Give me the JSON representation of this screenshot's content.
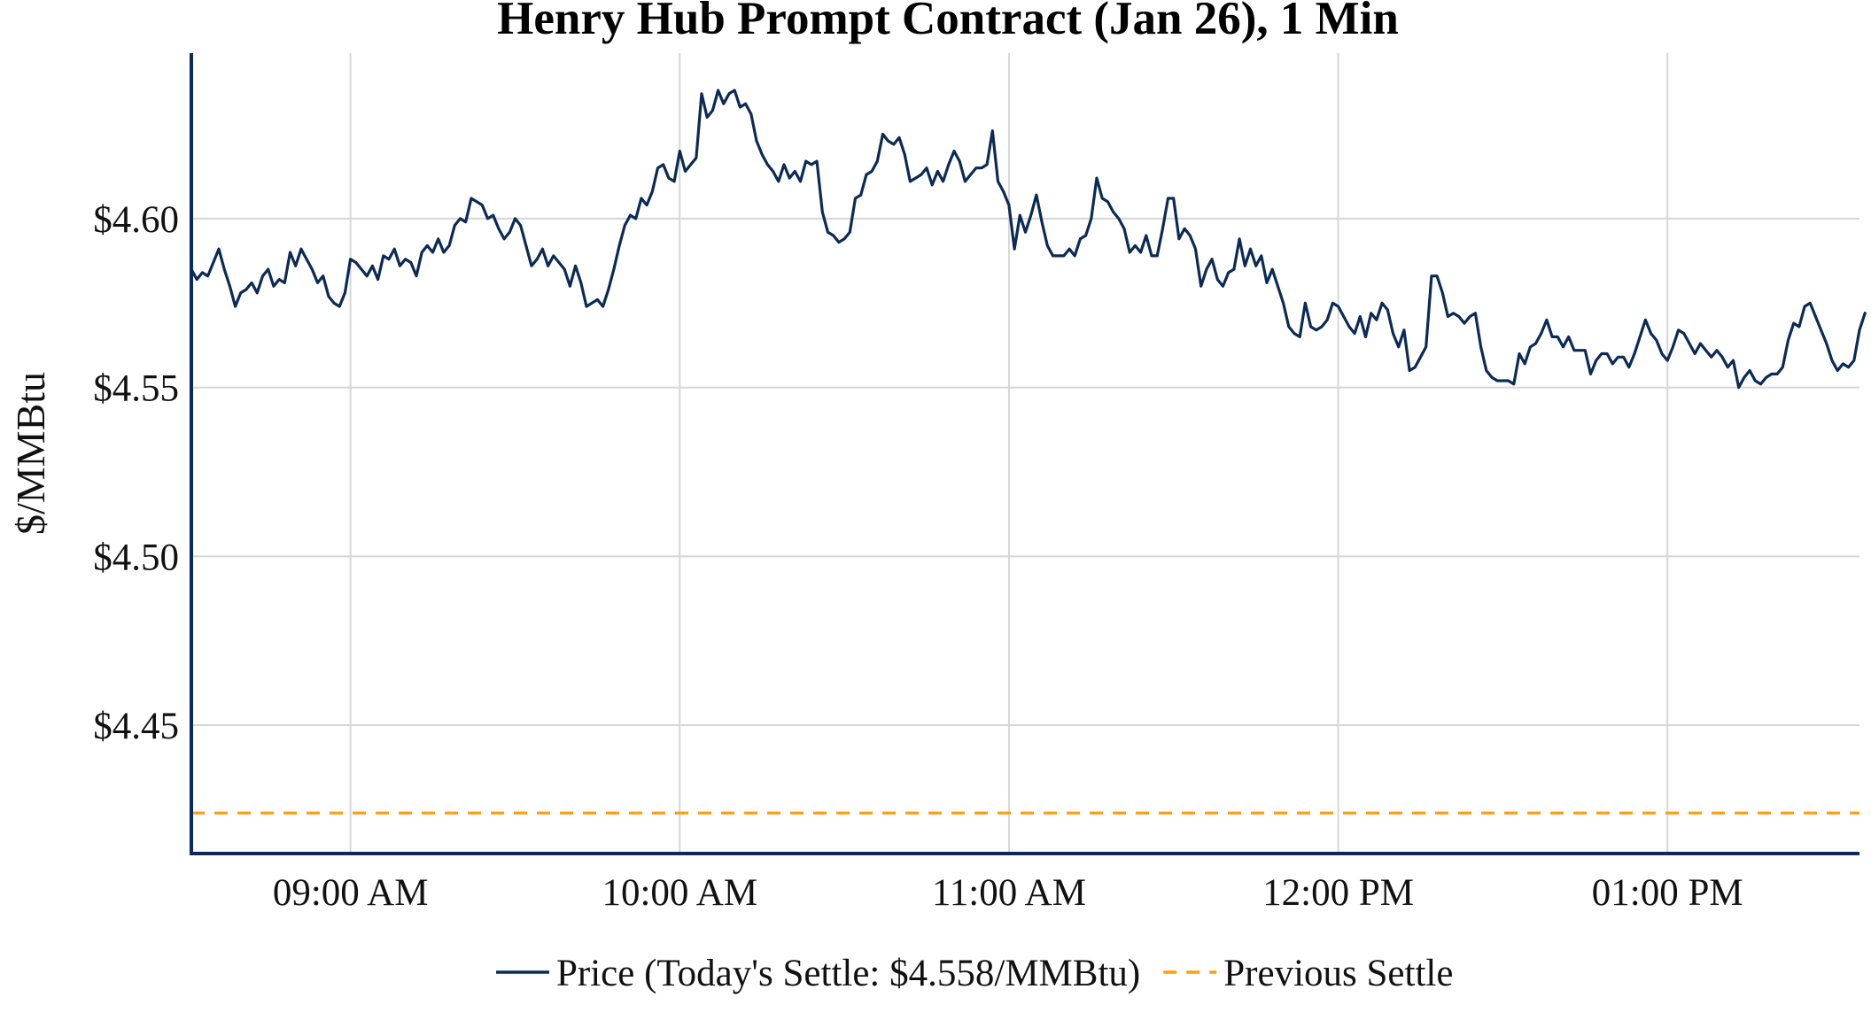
{
  "chart_data": {
    "type": "line",
    "title": "Henry Hub Prompt Contract (Jan 26), 1 Min",
    "xlabel": "",
    "ylabel": "$/MMBtu",
    "x_start": "08:31 AM",
    "x_interval_minutes": 1,
    "xlim": [
      "08:31 AM",
      "01:35 PM"
    ],
    "ylim": [
      4.412,
      4.649
    ],
    "x_ticks": [
      "09:00 AM",
      "10:00 AM",
      "11:00 AM",
      "12:00 PM",
      "01:00 PM"
    ],
    "y_ticks": [
      {
        "value": 4.45,
        "label": "$4.45"
      },
      {
        "value": 4.5,
        "label": "$4.50"
      },
      {
        "value": 4.55,
        "label": "$4.55"
      },
      {
        "value": 4.6,
        "label": "$4.60"
      }
    ],
    "grid": true,
    "legend_position": "bottom",
    "series": [
      {
        "name": "Price (Today's Settle: $4.558/MMBtu)",
        "color": "#0b2a55",
        "style": "solid",
        "values": [
          4.585,
          4.582,
          4.584,
          4.583,
          4.587,
          4.591,
          4.585,
          4.58,
          4.574,
          4.578,
          4.579,
          4.581,
          4.578,
          4.583,
          4.585,
          4.58,
          4.582,
          4.581,
          4.59,
          4.586,
          4.591,
          4.588,
          4.585,
          4.581,
          4.583,
          4.577,
          4.575,
          4.574,
          4.578,
          4.588,
          4.587,
          4.585,
          4.583,
          4.586,
          4.582,
          4.589,
          4.588,
          4.591,
          4.586,
          4.588,
          4.587,
          4.583,
          4.59,
          4.592,
          4.59,
          4.594,
          4.59,
          4.592,
          4.598,
          4.6,
          4.599,
          4.606,
          4.605,
          4.604,
          4.6,
          4.601,
          4.597,
          4.594,
          4.596,
          4.6,
          4.598,
          4.592,
          4.586,
          4.588,
          4.591,
          4.586,
          4.589,
          4.587,
          4.585,
          4.58,
          4.586,
          4.581,
          4.574,
          4.575,
          4.576,
          4.574,
          4.579,
          4.585,
          4.592,
          4.598,
          4.601,
          4.6,
          4.606,
          4.604,
          4.608,
          4.615,
          4.616,
          4.612,
          4.611,
          4.62,
          4.614,
          4.616,
          4.618,
          4.637,
          4.63,
          4.632,
          4.638,
          4.634,
          4.637,
          4.638,
          4.633,
          4.634,
          4.631,
          4.623,
          4.619,
          4.616,
          4.614,
          4.611,
          4.616,
          4.612,
          4.614,
          4.611,
          4.617,
          4.616,
          4.617,
          4.602,
          4.596,
          4.595,
          4.593,
          4.594,
          4.596,
          4.606,
          4.607,
          4.613,
          4.614,
          4.617,
          4.625,
          4.623,
          4.622,
          4.624,
          4.619,
          4.611,
          4.612,
          4.613,
          4.615,
          4.61,
          4.614,
          4.611,
          4.616,
          4.62,
          4.617,
          4.611,
          4.613,
          4.615,
          4.615,
          4.616,
          4.626,
          4.611,
          4.608,
          4.604,
          4.591,
          4.601,
          4.596,
          4.601,
          4.607,
          4.599,
          4.592,
          4.589,
          4.589,
          4.589,
          4.591,
          4.589,
          4.594,
          4.595,
          4.6,
          4.612,
          4.606,
          4.605,
          4.602,
          4.6,
          4.597,
          4.59,
          4.592,
          4.59,
          4.595,
          4.589,
          4.589,
          4.597,
          4.606,
          4.606,
          4.594,
          4.597,
          4.595,
          4.591,
          4.58,
          4.585,
          4.588,
          4.582,
          4.58,
          4.584,
          4.585,
          4.594,
          4.586,
          4.591,
          4.586,
          4.589,
          4.581,
          4.585,
          4.58,
          4.575,
          4.568,
          4.566,
          4.565,
          4.575,
          4.568,
          4.567,
          4.568,
          4.57,
          4.575,
          4.574,
          4.571,
          4.568,
          4.566,
          4.571,
          4.565,
          4.572,
          4.57,
          4.575,
          4.573,
          4.566,
          4.562,
          4.567,
          4.555,
          4.556,
          4.559,
          4.562,
          4.583,
          4.583,
          4.578,
          4.571,
          4.572,
          4.571,
          4.569,
          4.571,
          4.572,
          4.562,
          4.555,
          4.553,
          4.552,
          4.552,
          4.552,
          4.551,
          4.56,
          4.557,
          4.562,
          4.563,
          4.566,
          4.57,
          4.565,
          4.565,
          4.562,
          4.565,
          4.561,
          4.561,
          4.561,
          4.554,
          4.558,
          4.56,
          4.56,
          4.557,
          4.559,
          4.559,
          4.556,
          4.56,
          4.565,
          4.57,
          4.566,
          4.564,
          4.56,
          4.558,
          4.562,
          4.567,
          4.566,
          4.563,
          4.56,
          4.563,
          4.561,
          4.559,
          4.561,
          4.559,
          4.556,
          4.558,
          4.55,
          4.553,
          4.555,
          4.552,
          4.551,
          4.553,
          4.554,
          4.554,
          4.556,
          4.564,
          4.569,
          4.568,
          4.574,
          4.575,
          4.571,
          4.567,
          4.563,
          4.558,
          4.555,
          4.557,
          4.556,
          4.558,
          4.567,
          4.572
        ]
      },
      {
        "name": "Previous Settle",
        "color": "#ff9f10",
        "style": "dashed",
        "value": 4.424
      }
    ]
  }
}
